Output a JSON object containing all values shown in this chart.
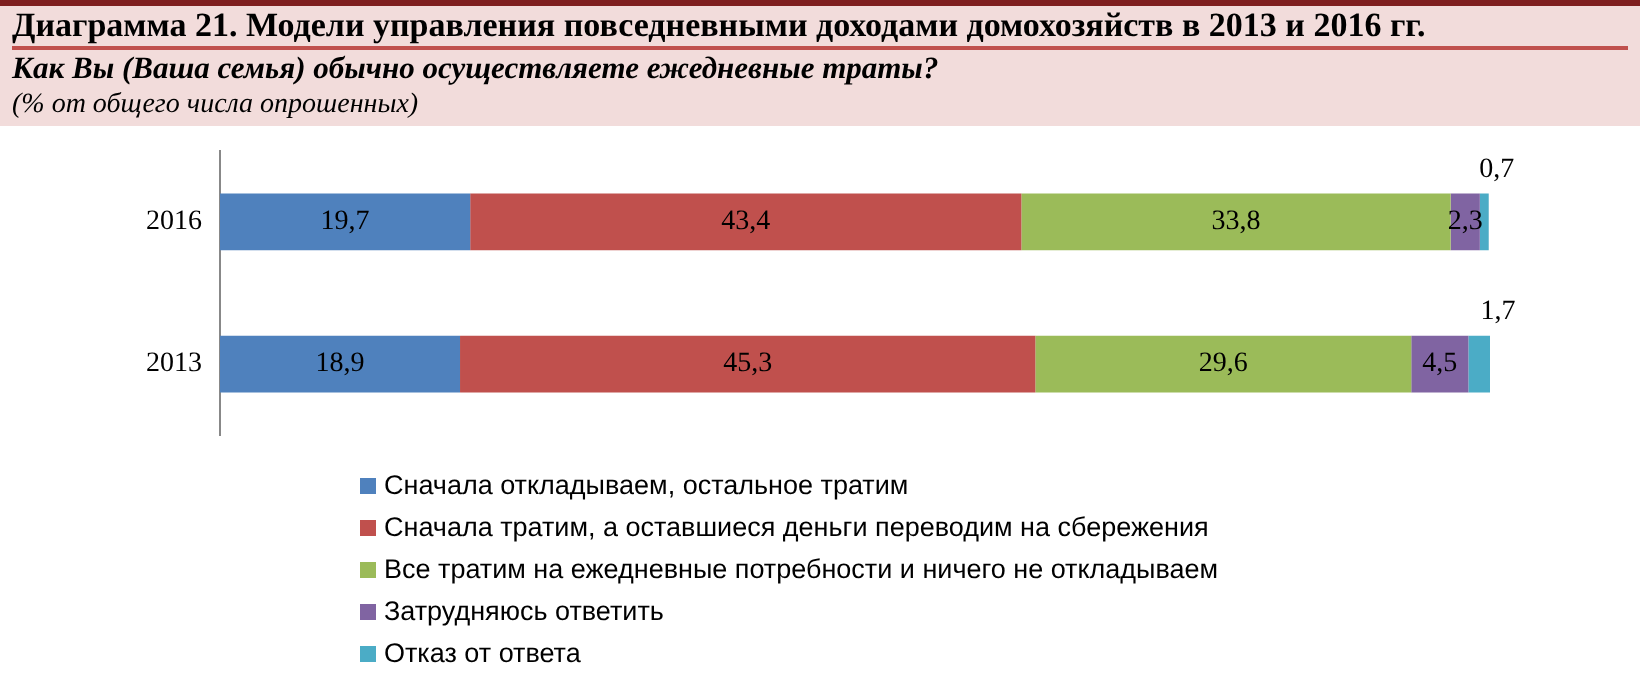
{
  "chart_data": {
    "type": "bar",
    "orientation": "horizontal",
    "stacked": true,
    "legend": "bottom",
    "grid": false,
    "title": "Диаграмма 21. Модели управления повседневными доходами домохозяйств в 2013 и 2016 гг.",
    "subtitle": "Как Вы (Ваша семья) обычно осуществляете ежедневные траты?",
    "annotations": [
      "(% от общего числа опрошенных)"
    ],
    "categories": [
      "2016",
      "2013"
    ],
    "series": [
      {
        "name": "Сначала откладываем, остальное тратим",
        "color": "#4f81bd",
        "values": [
          19.7,
          18.9
        ],
        "value_labels": [
          "19,7",
          "18,9"
        ]
      },
      {
        "name": "Сначала тратим, а оставшиеся деньги переводим на сбережения",
        "color": "#c0504d",
        "values": [
          43.4,
          45.3
        ],
        "value_labels": [
          "43,4",
          "45,3"
        ]
      },
      {
        "name": "Все тратим на ежедневные потребности и ничего не откладываем",
        "color": "#9bbb59",
        "values": [
          33.8,
          29.6
        ],
        "value_labels": [
          "33,8",
          "29,6"
        ]
      },
      {
        "name": "Затрудняюсь ответить",
        "color": "#8064a2",
        "values": [
          2.3,
          4.5
        ],
        "value_labels": [
          "2,3",
          "4,5"
        ]
      },
      {
        "name": "Отказ от ответа",
        "color": "#4bacc6",
        "values": [
          0.7,
          1.7
        ],
        "value_labels": [
          "0,7",
          "1,7"
        ]
      }
    ]
  }
}
